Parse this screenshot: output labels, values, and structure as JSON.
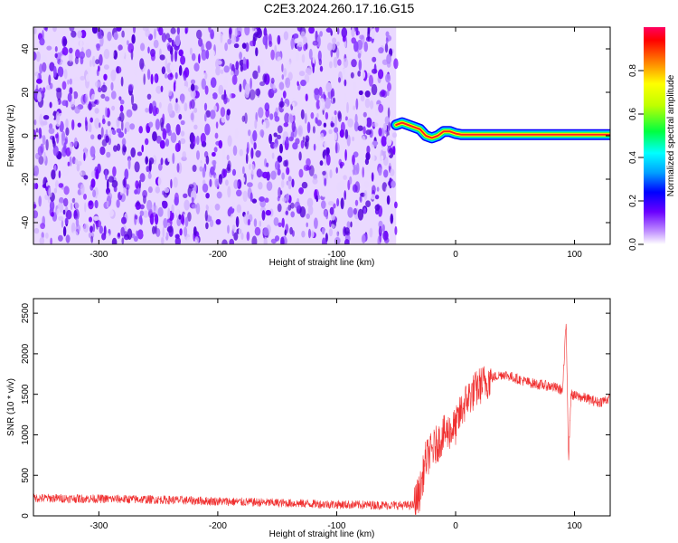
{
  "figure": {
    "title": "C2E3.2024.260.17.16.G15"
  },
  "chart_data": [
    {
      "type": "heatmap",
      "xlabel": "Height of straight line (km)",
      "ylabel": "Frequency (Hz)",
      "xlim": [
        -355,
        130
      ],
      "ylim": [
        -50,
        50
      ],
      "xticks": [
        -300,
        -200,
        -100,
        0,
        100
      ],
      "yticks": [
        -40,
        -20,
        0,
        20,
        40
      ],
      "noise_region_x": [
        -355,
        -50
      ],
      "colorbar": {
        "label": "Normalized spectral amplitude",
        "range": [
          0,
          1
        ],
        "ticks": [
          0.0,
          0.2,
          0.4,
          0.6,
          0.8
        ],
        "colors": [
          "#ffffff",
          "#c090ff",
          "#6a00ff",
          "#0000ff",
          "#00a0ff",
          "#00ffff",
          "#00ff40",
          "#c0ff00",
          "#ffff00",
          "#ff8000",
          "#ff0000",
          "#ff0060"
        ]
      },
      "signal_trace": [
        {
          "x": -50,
          "y": 5
        },
        {
          "x": -45,
          "y": 6
        },
        {
          "x": -40,
          "y": 5
        },
        {
          "x": -35,
          "y": 4
        },
        {
          "x": -30,
          "y": 3
        },
        {
          "x": -25,
          "y": 0
        },
        {
          "x": -20,
          "y": -1
        },
        {
          "x": -15,
          "y": 0
        },
        {
          "x": -10,
          "y": 2
        },
        {
          "x": -5,
          "y": 2
        },
        {
          "x": 0,
          "y": 1
        },
        {
          "x": 5,
          "y": 0.5
        },
        {
          "x": 20,
          "y": 0.5
        },
        {
          "x": 50,
          "y": 0.5
        },
        {
          "x": 85,
          "y": 0.5
        },
        {
          "x": 100,
          "y": 0.5
        },
        {
          "x": 130,
          "y": 0.5
        }
      ],
      "grid": false
    },
    {
      "type": "line",
      "xlabel": "Height of straight line (km)",
      "ylabel": "SNR (10 * v/v)",
      "xlim": [
        -355,
        130
      ],
      "ylim": [
        0,
        2680
      ],
      "xticks": [
        -300,
        -200,
        -100,
        0,
        100
      ],
      "yticks": [
        0,
        500,
        1000,
        1500,
        2000,
        2500
      ],
      "line_color": "#f03030",
      "series": [
        {
          "x": [
            -355,
            -300,
            -250,
            -200,
            -150,
            -100,
            -50,
            -35,
            -30,
            -25,
            -20,
            -15,
            -10,
            -5,
            0,
            5,
            10,
            20,
            30,
            40,
            50,
            60,
            70,
            80,
            90,
            93,
            95,
            97,
            100,
            110,
            120,
            130
          ],
          "values": [
            220,
            210,
            200,
            180,
            160,
            140,
            130,
            130,
            300,
            700,
            800,
            900,
            1000,
            1050,
            1100,
            1300,
            1450,
            1600,
            1700,
            1750,
            1700,
            1650,
            1620,
            1600,
            1550,
            2400,
            700,
            1500,
            1480,
            1450,
            1400,
            1450
          ]
        }
      ],
      "grid": false
    }
  ]
}
